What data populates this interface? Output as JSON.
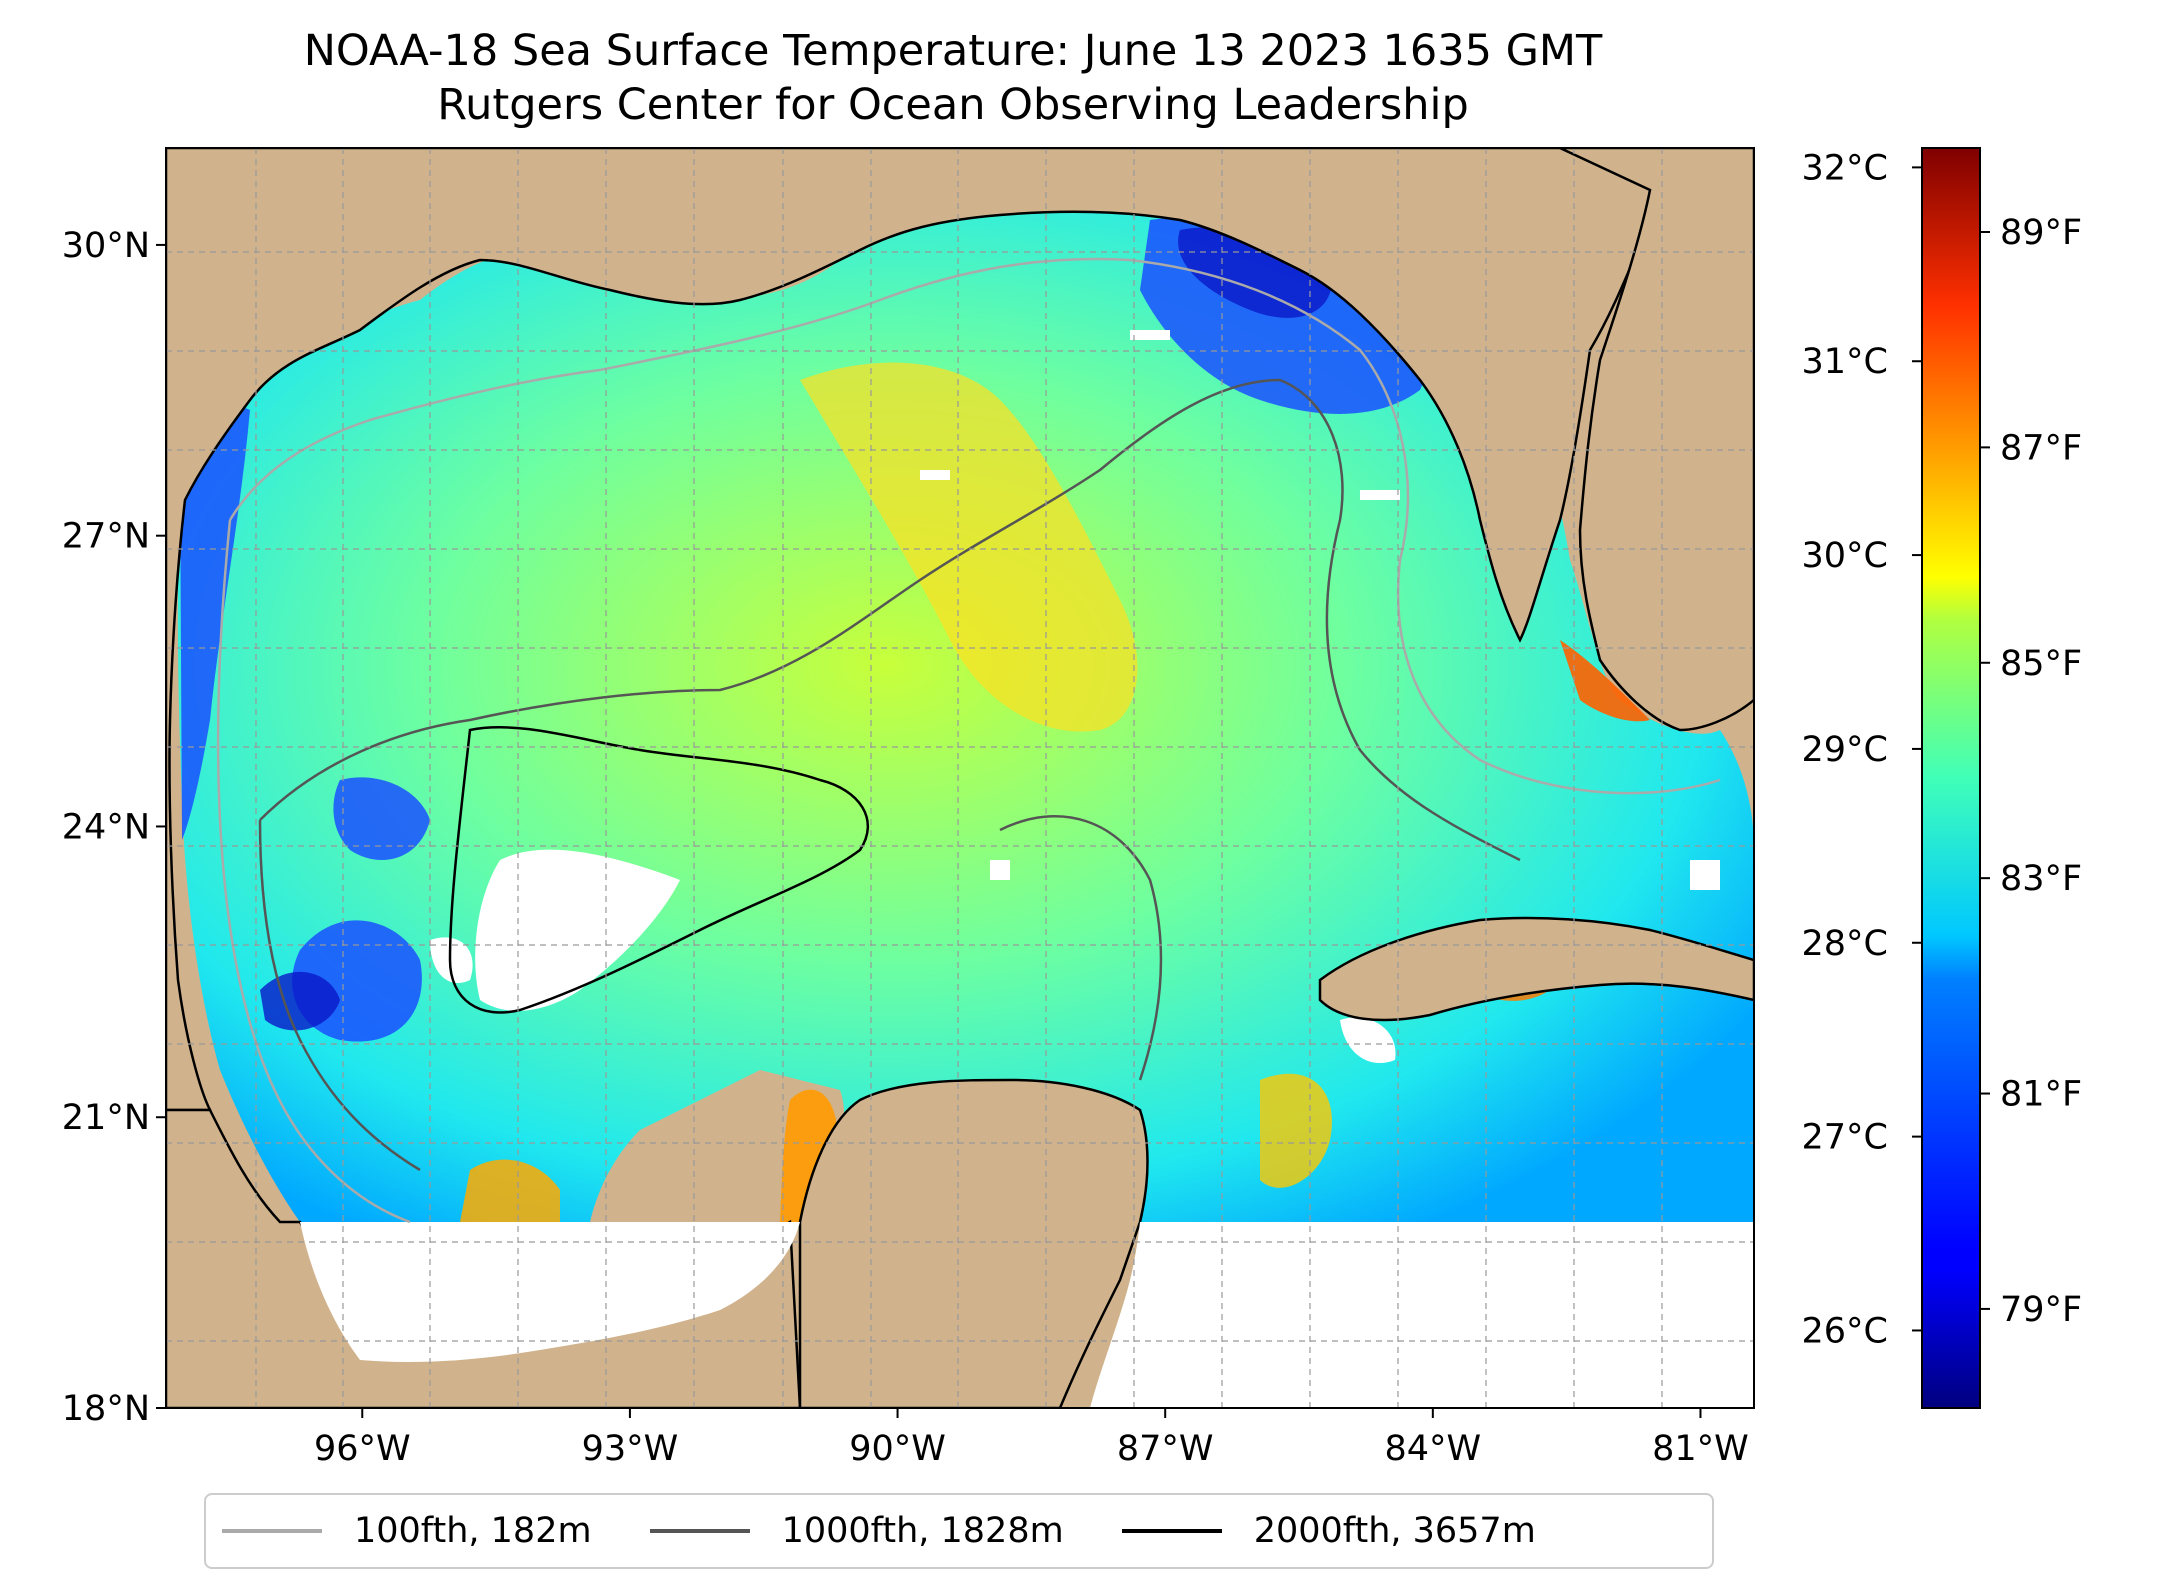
{
  "title": {
    "line1": "NOAA-18 Sea Surface Temperature: June 13 2023 1635 GMT",
    "line2": "Rutgers Center for Ocean Observing Leadership"
  },
  "map": {
    "lon_range": [
      -98.2,
      -80.4
    ],
    "lat_range": [
      18,
      31
    ],
    "lon_ticks": [
      {
        "value": -96,
        "label": "96°W"
      },
      {
        "value": -93,
        "label": "93°W"
      },
      {
        "value": -90,
        "label": "90°W"
      },
      {
        "value": -87,
        "label": "87°W"
      },
      {
        "value": -84,
        "label": "84°W"
      },
      {
        "value": -81,
        "label": "81°W"
      }
    ],
    "lat_ticks": [
      {
        "value": 18,
        "label": "18°N"
      },
      {
        "value": 21,
        "label": "21°N"
      },
      {
        "value": 24,
        "label": "24°N"
      },
      {
        "value": 27,
        "label": "27°N"
      },
      {
        "value": 30,
        "label": "30°N"
      }
    ],
    "data_south_limit_lat": 20,
    "land_color": "#d0b38c",
    "grid": true
  },
  "colorbar": {
    "colormap": "jet",
    "range_c": [
      25.6,
      32.1
    ],
    "celsius_ticks": [
      {
        "value": 26,
        "label": "26°C"
      },
      {
        "value": 27,
        "label": "27°C"
      },
      {
        "value": 28,
        "label": "28°C"
      },
      {
        "value": 29,
        "label": "29°C"
      },
      {
        "value": 30,
        "label": "30°C"
      },
      {
        "value": 31,
        "label": "31°C"
      },
      {
        "value": 32,
        "label": "32°C"
      }
    ],
    "fahrenheit_ticks": [
      {
        "value": 79,
        "label": "79°F"
      },
      {
        "value": 81,
        "label": "81°F"
      },
      {
        "value": 83,
        "label": "83°F"
      },
      {
        "value": 85,
        "label": "85°F"
      },
      {
        "value": 87,
        "label": "87°F"
      },
      {
        "value": 89,
        "label": "89°F"
      }
    ]
  },
  "legend": [
    {
      "label": "100fth, 182m",
      "color": "#aaaaaa"
    },
    {
      "label": "1000fth, 1828m",
      "color": "#555555"
    },
    {
      "label": "2000fth, 3657m",
      "color": "#000000"
    }
  ]
}
